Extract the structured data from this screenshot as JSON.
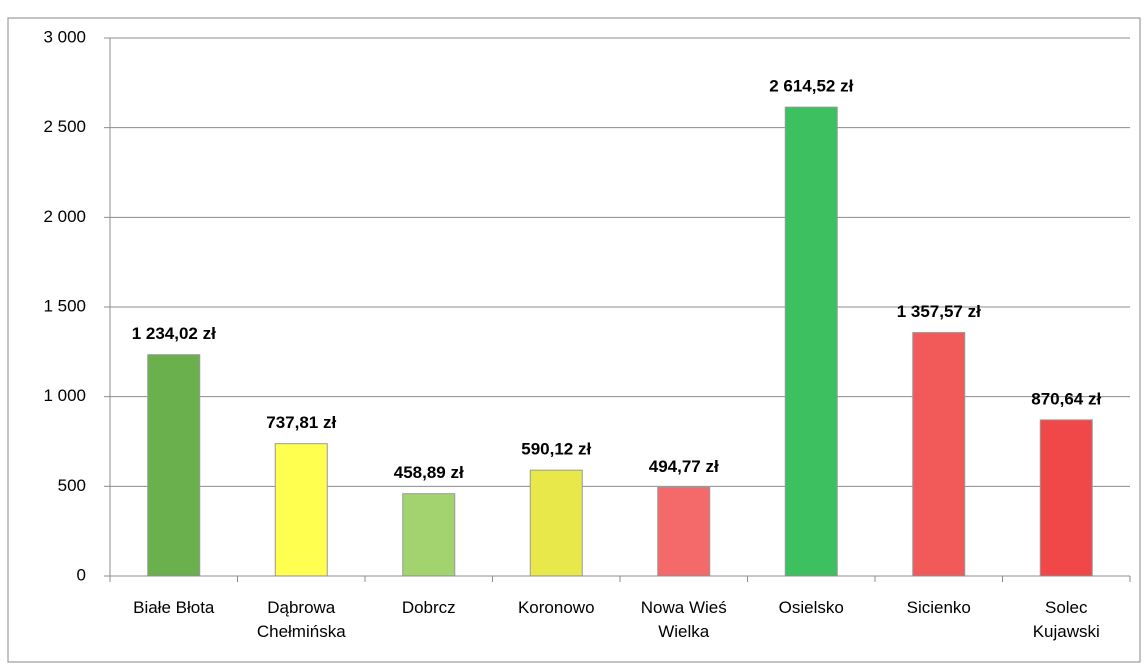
{
  "chart_data": {
    "type": "bar",
    "categories": [
      "Białe Błota",
      "Dąbrowa Chełmińska",
      "Dobrcz",
      "Koronowo",
      "Nowa Wieś Wielka",
      "Osielsko",
      "Sicienko",
      "Solec Kujawski"
    ],
    "values": [
      1234.02,
      737.81,
      458.89,
      590.12,
      494.77,
      2614.52,
      1357.57,
      870.64
    ],
    "value_labels": [
      "1 234,02 zł",
      "737,81 zł",
      "458,89 zł",
      "590,12 zł",
      "494,77 zł",
      "2 614,52 zł",
      "1 357,57 zł",
      "870,64 zł"
    ],
    "colors": [
      "#6ab04c",
      "#ffff50",
      "#a3d36e",
      "#e8e84a",
      "#f46a6a",
      "#3cc060",
      "#f25a5a",
      "#f04848"
    ],
    "ylim": [
      0,
      3000
    ],
    "yticks": [
      0,
      500,
      {
        "value": 1000,
        "label": "1 000"
      },
      {
        "value": 1500,
        "label": "1 500"
      },
      {
        "value": 2000,
        "label": "2 000"
      },
      {
        "value": 2500,
        "label": "2 500"
      },
      {
        "value": 3000,
        "label": "3 000"
      }
    ],
    "grid": true
  }
}
